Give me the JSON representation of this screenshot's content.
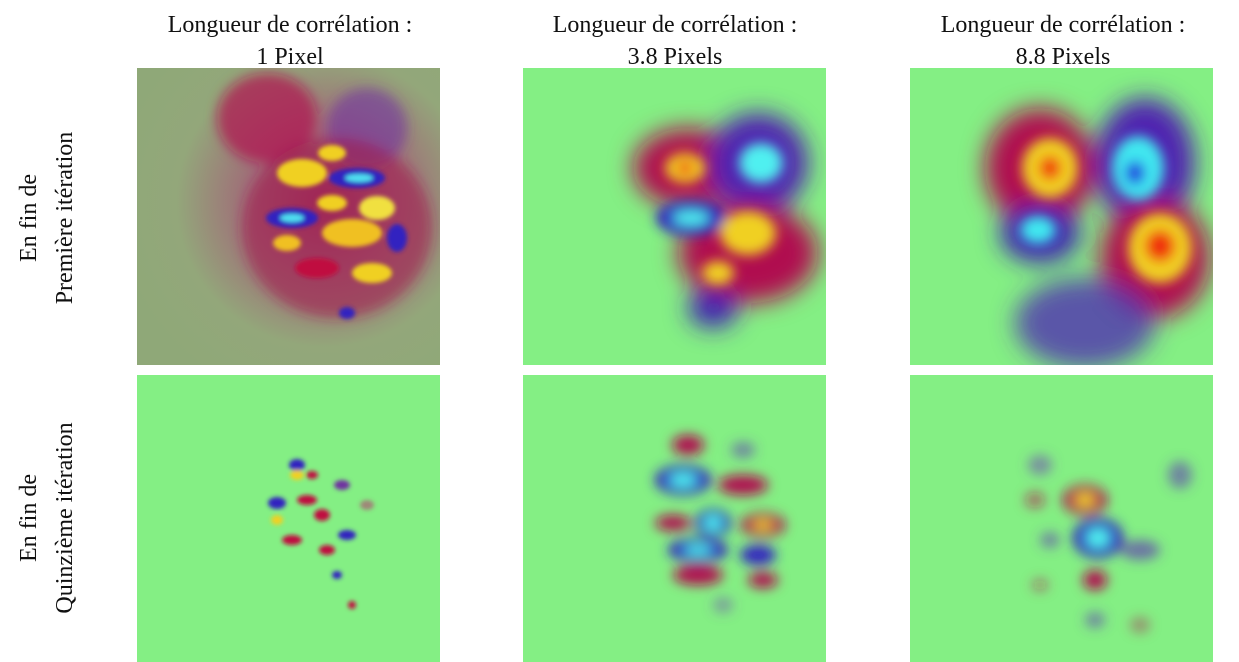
{
  "columns": [
    {
      "line1": "Longueur de corrélation :",
      "line2": "1 Pixel"
    },
    {
      "line1": "Longueur de corrélation :",
      "line2": "3.8 Pixels"
    },
    {
      "line1": "Longueur de corrélation :",
      "line2": "8.8 Pixels"
    }
  ],
  "rows": [
    {
      "line1": "En fin de",
      "line2": "Première itération"
    },
    {
      "line1": "En fin de",
      "line2": "Quinzième itération"
    }
  ]
}
